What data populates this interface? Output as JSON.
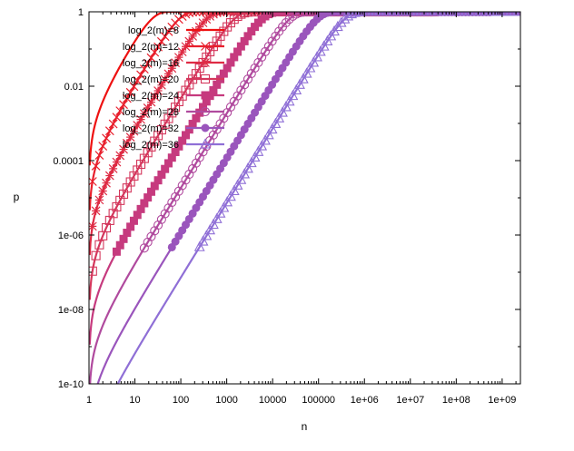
{
  "chart_data": {
    "type": "line",
    "xlabel": "n",
    "ylabel": "p",
    "xscale": "log",
    "yscale": "log",
    "xlim": [
      1,
      2500000000
    ],
    "ylim": [
      1e-10,
      1
    ],
    "grid": false,
    "legend_position": "top-left",
    "x_ticks": [
      {
        "value": 1,
        "label": "1"
      },
      {
        "value": 10,
        "label": "10"
      },
      {
        "value": 100,
        "label": "100"
      },
      {
        "value": 1000,
        "label": "1000"
      },
      {
        "value": 10000,
        "label": "10000"
      },
      {
        "value": 100000,
        "label": "100000"
      },
      {
        "value": 1000000,
        "label": "1e+06"
      },
      {
        "value": 10000000,
        "label": "1e+07"
      },
      {
        "value": 100000000,
        "label": "1e+08"
      },
      {
        "value": 1000000000,
        "label": "1e+09"
      }
    ],
    "y_ticks": [
      {
        "value": 1,
        "label": "1"
      },
      {
        "value": 0.01,
        "label": "0.01"
      },
      {
        "value": 0.0001,
        "label": "0.0001"
      },
      {
        "value": 1e-06,
        "label": "1e-06"
      },
      {
        "value": 1e-08,
        "label": "1e-08"
      },
      {
        "value": 1e-10,
        "label": "1e-10"
      }
    ],
    "series": [
      {
        "name": "log_2(m)=8",
        "log2m": 8,
        "color": "#ee1111",
        "marker": "none"
      },
      {
        "name": "log_2(m)=12",
        "log2m": 12,
        "color": "#e81f2c",
        "marker": "x"
      },
      {
        "name": "log_2(m)=16",
        "log2m": 16,
        "color": "#de2b44",
        "marker": "star"
      },
      {
        "name": "log_2(m)=20",
        "log2m": 20,
        "color": "#d4375c",
        "marker": "open-square"
      },
      {
        "name": "log_2(m)=24",
        "log2m": 24,
        "color": "#c63a7e",
        "marker": "filled-square"
      },
      {
        "name": "log_2(m)=28",
        "log2m": 28,
        "color": "#b04a9e",
        "marker": "open-circle"
      },
      {
        "name": "log_2(m)=32",
        "log2m": 32,
        "color": "#9a55bc",
        "marker": "filled-circle"
      },
      {
        "name": "log_2(m)=36",
        "log2m": 36,
        "color": "#8f6fd6",
        "marker": "open-triangle"
      }
    ]
  }
}
